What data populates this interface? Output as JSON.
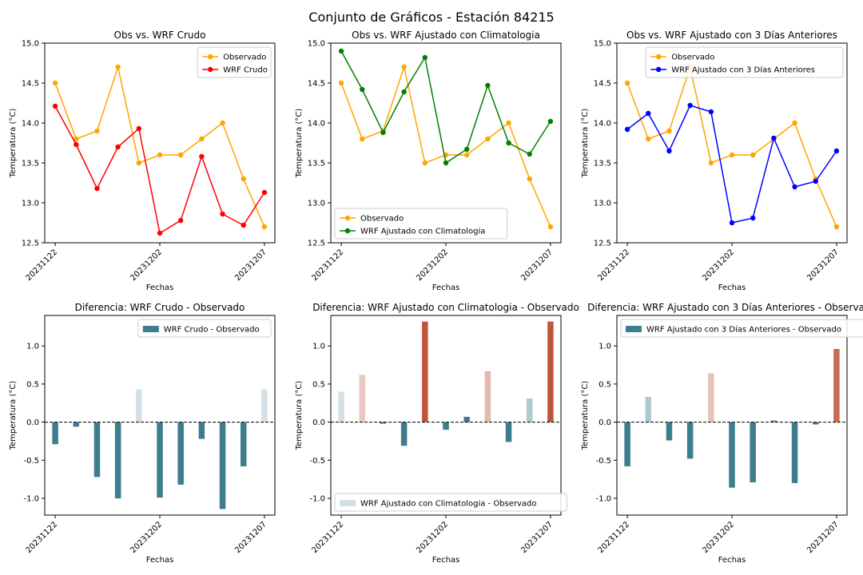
{
  "figure": {
    "title": "Conjunto de Gráficos - Estación 84215",
    "colors": {
      "observado": "#FFA500",
      "wrf_crudo": "#FF0000",
      "wrf_clima": "#008000",
      "wrf_3dias": "#0000FF",
      "diff_neg_strong": "#3E7D8C",
      "diff_neg_light": "#AFC9D3",
      "diff_neg_pale": "#D3E0E5",
      "diff_pos_pale": "#E9C6C0",
      "diff_pos_light": "#E4B9AE",
      "diff_pos_mid": "#C86A50",
      "diff_pos_strong": "#C0553A",
      "baseline": "#000000"
    }
  },
  "chart_data": [
    {
      "type": "line",
      "title": "Obs vs. WRF Crudo",
      "xlabel": "Fechas",
      "ylabel": "Temperatura (°C)",
      "x": [
        0,
        1,
        2,
        3,
        4,
        5,
        6,
        7,
        8,
        9,
        10
      ],
      "xticks": [
        0,
        5,
        10
      ],
      "xticklabels": [
        "20231122",
        "20231202",
        "20231207"
      ],
      "ylim": [
        12.5,
        15.0
      ],
      "yticks": [
        12.5,
        13.0,
        13.5,
        14.0,
        14.5,
        15.0
      ],
      "legend_loc": "top-right",
      "series": [
        {
          "name": "Observado",
          "color": "#FFA500",
          "values": [
            14.5,
            13.8,
            13.9,
            14.7,
            13.5,
            13.6,
            13.6,
            13.8,
            14.0,
            13.3,
            12.7
          ]
        },
        {
          "name": "WRF Crudo",
          "color": "#FF0000",
          "values": [
            14.21,
            13.73,
            13.18,
            13.7,
            13.93,
            12.62,
            12.78,
            13.58,
            12.86,
            12.72,
            13.13
          ]
        }
      ]
    },
    {
      "type": "line",
      "title": "Obs vs. WRF Ajustado con Climatologia",
      "xlabel": "Fechas",
      "ylabel": "Temperatura (°C)",
      "x": [
        0,
        1,
        2,
        3,
        4,
        5,
        6,
        7,
        8,
        9,
        10
      ],
      "xticks": [
        0,
        5,
        10
      ],
      "xticklabels": [
        "20231122",
        "20231202",
        "20231207"
      ],
      "ylim": [
        12.5,
        15.0
      ],
      "yticks": [
        12.5,
        13.0,
        13.5,
        14.0,
        14.5,
        15.0
      ],
      "legend_loc": "bottom-left",
      "series": [
        {
          "name": "Observado",
          "color": "#FFA500",
          "values": [
            14.5,
            13.8,
            13.9,
            14.7,
            13.5,
            13.6,
            13.6,
            13.8,
            14.0,
            13.3,
            12.7
          ]
        },
        {
          "name": "WRF Ajustado con Climatologia",
          "color": "#008000",
          "values": [
            14.9,
            14.42,
            13.88,
            14.39,
            14.82,
            13.5,
            13.67,
            14.47,
            13.75,
            13.61,
            14.02
          ]
        }
      ]
    },
    {
      "type": "line",
      "title": "Obs vs. WRF Ajustado con 3 Días Anteriores",
      "xlabel": "Fechas",
      "ylabel": "Temperatura (°C)",
      "x": [
        0,
        1,
        2,
        3,
        4,
        5,
        6,
        7,
        8,
        9,
        10
      ],
      "xticks": [
        0,
        5,
        10
      ],
      "xticklabels": [
        "20231122",
        "20231202",
        "20231207"
      ],
      "ylim": [
        12.5,
        15.0
      ],
      "yticks": [
        12.5,
        13.0,
        13.5,
        14.0,
        14.5,
        15.0
      ],
      "legend_loc": "top-right",
      "series": [
        {
          "name": "Observado",
          "color": "#FFA500",
          "values": [
            14.5,
            13.8,
            13.9,
            14.7,
            13.5,
            13.6,
            13.6,
            13.8,
            14.0,
            13.3,
            12.7
          ]
        },
        {
          "name": "WRF Ajustado con 3 Días Anteriores",
          "color": "#0000FF",
          "values": [
            13.92,
            14.12,
            13.65,
            14.22,
            14.14,
            12.75,
            12.81,
            13.81,
            13.2,
            13.27,
            13.65
          ]
        }
      ]
    },
    {
      "type": "bar",
      "title": "Diferencia: WRF Crudo - Observado",
      "xlabel": "Fechas",
      "ylabel": "Temperatura (°C)",
      "x": [
        0,
        1,
        2,
        3,
        4,
        5,
        6,
        7,
        8,
        9,
        10
      ],
      "xticks": [
        0,
        5,
        10
      ],
      "xticklabels": [
        "20231122",
        "20231202",
        "20231207"
      ],
      "ylim": [
        -1.22,
        1.4
      ],
      "yticks": [
        -1.0,
        -0.5,
        0.0,
        0.5,
        1.0
      ],
      "legend_loc": "top-right",
      "series": [
        {
          "name": "WRF Crudo - Observado",
          "color": "#3E7D8C",
          "values": [
            -0.29,
            -0.06,
            -0.72,
            -1.0,
            0.43,
            -0.99,
            -0.82,
            -0.22,
            -1.14,
            -0.58,
            0.43
          ],
          "colors": [
            "#3E7D8C",
            "#3E7D8C",
            "#3E7D8C",
            "#3E7D8C",
            "#D3E0E5",
            "#3E7D8C",
            "#3E7D8C",
            "#3E7D8C",
            "#3E7D8C",
            "#3E7D8C",
            "#D3E0E5"
          ]
        }
      ]
    },
    {
      "type": "bar",
      "title": "Diferencia: WRF Ajustado con Climatologia - Observado",
      "xlabel": "Fechas",
      "ylabel": "Temperatura (°C)",
      "x": [
        0,
        1,
        2,
        3,
        4,
        5,
        6,
        7,
        8,
        9,
        10
      ],
      "xticks": [
        0,
        5,
        10
      ],
      "xticklabels": [
        "20231122",
        "20231202",
        "20231207"
      ],
      "ylim": [
        -1.22,
        1.4
      ],
      "yticks": [
        -1.0,
        -0.5,
        0.0,
        0.5,
        1.0
      ],
      "legend_loc": "bottom-left",
      "series": [
        {
          "name": "WRF Ajustado con Climatologia - Observado",
          "color": "#D3E0E5",
          "values": [
            0.4,
            0.62,
            -0.02,
            -0.31,
            1.32,
            -0.1,
            0.07,
            0.67,
            -0.26,
            0.31,
            1.32
          ],
          "colors": [
            "#D3E0E5",
            "#E9C6C0",
            "#3E7D8C",
            "#3E7D8C",
            "#C0553A",
            "#3E7D8C",
            "#3E7D8C",
            "#E4B9AE",
            "#3E7D8C",
            "#AFC9D3",
            "#C0553A"
          ]
        }
      ]
    },
    {
      "type": "bar",
      "title": "Diferencia: WRF Ajustado con 3 Días Anteriores - Observado",
      "xlabel": "Fechas",
      "ylabel": "Temperatura (°C)",
      "x": [
        0,
        1,
        2,
        3,
        4,
        5,
        6,
        7,
        8,
        9,
        10
      ],
      "xticks": [
        0,
        5,
        10
      ],
      "xticklabels": [
        "20231122",
        "20231202",
        "20231207"
      ],
      "ylim": [
        -1.22,
        1.4
      ],
      "yticks": [
        -1.0,
        -0.5,
        0.0,
        0.5,
        1.0
      ],
      "legend_loc": "top-left",
      "series": [
        {
          "name": "WRF Ajustado con 3 Días Anteriores - Observado",
          "color": "#3E7D8C",
          "values": [
            -0.58,
            0.33,
            -0.24,
            -0.48,
            0.64,
            -0.86,
            -0.79,
            0.02,
            -0.8,
            -0.03,
            0.96
          ],
          "colors": [
            "#3E7D8C",
            "#AFC9D3",
            "#3E7D8C",
            "#3E7D8C",
            "#E4C3B9",
            "#3E7D8C",
            "#3E7D8C",
            "#3E7D8C",
            "#3E7D8C",
            "#3E7D8C",
            "#C86A50"
          ]
        }
      ]
    }
  ]
}
